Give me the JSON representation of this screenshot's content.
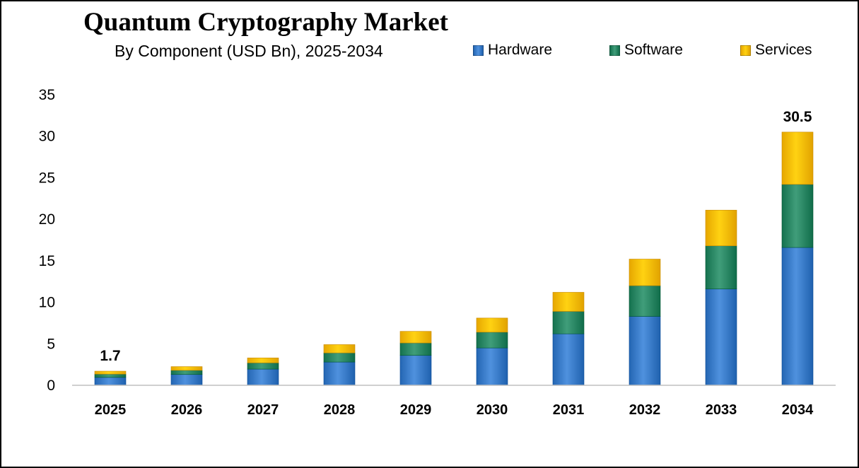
{
  "chart_data": {
    "type": "bar",
    "stacked": true,
    "title": "Quantum Cryptography Market",
    "subtitle": "By Component  (USD Bn), 2025-2034",
    "categories": [
      "2025",
      "2026",
      "2027",
      "2028",
      "2029",
      "2030",
      "2031",
      "2032",
      "2033",
      "2034"
    ],
    "series": [
      {
        "name": "Hardware",
        "color": "#3d7fcc",
        "values": [
          0.95,
          1.3,
          1.95,
          2.8,
          3.6,
          4.5,
          6.2,
          8.3,
          11.6,
          16.6
        ]
      },
      {
        "name": "Software",
        "color": "#2e8b68",
        "values": [
          0.4,
          0.5,
          0.75,
          1.1,
          1.5,
          1.9,
          2.7,
          3.7,
          5.2,
          7.6
        ]
      },
      {
        "name": "Services",
        "color": "#ffc000",
        "values": [
          0.35,
          0.45,
          0.6,
          1.0,
          1.4,
          1.7,
          2.3,
          3.2,
          4.3,
          6.3
        ]
      }
    ],
    "data_labels": [
      {
        "category": "2025",
        "text": "1.7"
      },
      {
        "category": "2034",
        "text": "30.5"
      }
    ],
    "ylim": [
      0,
      35
    ],
    "yticks": [
      "0",
      "5",
      "10",
      "15",
      "20",
      "25",
      "30",
      "35"
    ],
    "xlabel": "",
    "ylabel": "",
    "grid": false,
    "legend_position": "top-right"
  }
}
